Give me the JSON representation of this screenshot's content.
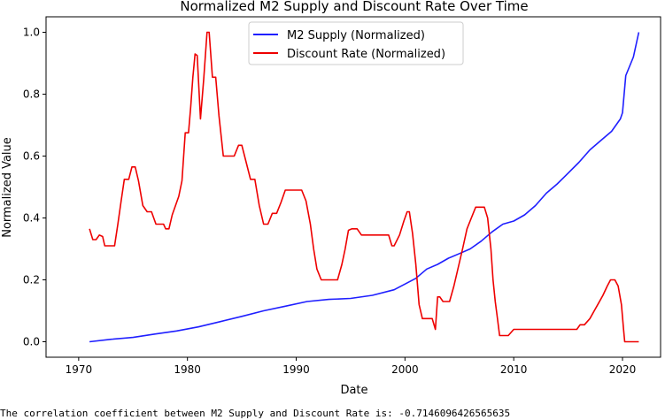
{
  "chart_data": {
    "type": "line",
    "title": "Normalized M2 Supply and Discount Rate Over Time",
    "xlabel": "Date",
    "ylabel": "Normalized Value",
    "xlim": [
      1967,
      2023.5
    ],
    "ylim": [
      -0.05,
      1.05
    ],
    "xticks": [
      1970,
      1980,
      1990,
      2000,
      2010,
      2020
    ],
    "yticks": [
      "0.0",
      "0.2",
      "0.4",
      "0.6",
      "0.8",
      "1.0"
    ],
    "grid": false,
    "legend_position": "top-center",
    "series": [
      {
        "name": "M2 Supply (Normalized)",
        "color": "#1f1fff",
        "x": [
          1971,
          1973,
          1975,
          1977,
          1979,
          1981,
          1983,
          1985,
          1987,
          1989,
          1991,
          1993,
          1995,
          1997,
          1999,
          2001,
          2002,
          2003,
          2004,
          2005,
          2006,
          2007,
          2008,
          2009,
          2010,
          2011,
          2012,
          2013,
          2014,
          2015,
          2016,
          2017,
          2018,
          2019,
          2019.8,
          2020,
          2020.3,
          2021,
          2021.5
        ],
        "y": [
          0.0,
          0.008,
          0.014,
          0.025,
          0.035,
          0.048,
          0.065,
          0.082,
          0.1,
          0.115,
          0.13,
          0.137,
          0.14,
          0.15,
          0.168,
          0.205,
          0.235,
          0.25,
          0.27,
          0.285,
          0.3,
          0.325,
          0.355,
          0.38,
          0.39,
          0.41,
          0.44,
          0.48,
          0.51,
          0.545,
          0.58,
          0.62,
          0.65,
          0.68,
          0.72,
          0.74,
          0.86,
          0.92,
          1.0
        ]
      },
      {
        "name": "Discount Rate (Normalized)",
        "color": "#ee0000",
        "x": [
          1971,
          1971.3,
          1971.6,
          1971.9,
          1972.2,
          1972.4,
          1972.6,
          1973.0,
          1973.3,
          1973.6,
          1973.9,
          1974.2,
          1974.6,
          1974.9,
          1975.2,
          1975.5,
          1975.9,
          1976.3,
          1976.7,
          1977.1,
          1977.5,
          1977.8,
          1978.0,
          1978.3,
          1978.6,
          1978.9,
          1979.2,
          1979.5,
          1979.8,
          1980.1,
          1980.3,
          1980.5,
          1980.7,
          1980.9,
          1981.2,
          1981.5,
          1981.8,
          1982.0,
          1982.3,
          1982.6,
          1982.9,
          1983.3,
          1983.8,
          1984.3,
          1984.7,
          1985.0,
          1985.4,
          1985.8,
          1986.2,
          1986.6,
          1987.0,
          1987.4,
          1987.8,
          1988.2,
          1988.6,
          1989.0,
          1989.5,
          1990.0,
          1990.5,
          1990.9,
          1991.3,
          1991.6,
          1991.9,
          1992.3,
          1992.8,
          1993.3,
          1993.8,
          1994.2,
          1994.5,
          1994.8,
          1995.1,
          1995.6,
          1996.0,
          1996.5,
          1997.0,
          1997.5,
          1998.0,
          1998.5,
          1998.8,
          1999.0,
          1999.5,
          1999.9,
          2000.2,
          2000.4,
          2000.7,
          2001.0,
          2001.3,
          2001.6,
          2001.9,
          2002.2,
          2002.5,
          2002.8,
          2003.0,
          2003.2,
          2003.5,
          2003.8,
          2004.1,
          2004.5,
          2004.9,
          2005.3,
          2005.7,
          2006.1,
          2006.5,
          2006.9,
          2007.3,
          2007.6,
          2007.9,
          2008.1,
          2008.3,
          2008.5,
          2008.7,
          2009.0,
          2009.5,
          2010.0,
          2011.0,
          2012.0,
          2013.0,
          2014.0,
          2015.0,
          2015.8,
          2016.1,
          2016.5,
          2017.0,
          2017.4,
          2017.8,
          2018.2,
          2018.6,
          2018.9,
          2019.3,
          2019.6,
          2019.9,
          2020.1,
          2020.2,
          2020.5,
          2021.0,
          2021.5
        ],
        "y": [
          0.365,
          0.33,
          0.33,
          0.345,
          0.34,
          0.31,
          0.31,
          0.31,
          0.31,
          0.38,
          0.455,
          0.525,
          0.525,
          0.565,
          0.565,
          0.52,
          0.44,
          0.42,
          0.42,
          0.38,
          0.38,
          0.38,
          0.365,
          0.365,
          0.41,
          0.44,
          0.47,
          0.52,
          0.675,
          0.675,
          0.76,
          0.855,
          0.93,
          0.925,
          0.72,
          0.85,
          1.0,
          1.0,
          0.855,
          0.855,
          0.73,
          0.6,
          0.6,
          0.6,
          0.635,
          0.635,
          0.58,
          0.525,
          0.525,
          0.44,
          0.38,
          0.38,
          0.415,
          0.415,
          0.45,
          0.49,
          0.49,
          0.49,
          0.49,
          0.455,
          0.38,
          0.3,
          0.235,
          0.2,
          0.2,
          0.2,
          0.2,
          0.25,
          0.3,
          0.36,
          0.365,
          0.365,
          0.345,
          0.345,
          0.345,
          0.345,
          0.345,
          0.345,
          0.31,
          0.31,
          0.345,
          0.39,
          0.42,
          0.42,
          0.35,
          0.25,
          0.12,
          0.075,
          0.075,
          0.075,
          0.075,
          0.04,
          0.145,
          0.145,
          0.13,
          0.13,
          0.13,
          0.18,
          0.24,
          0.3,
          0.365,
          0.4,
          0.435,
          0.435,
          0.435,
          0.4,
          0.3,
          0.2,
          0.13,
          0.075,
          0.02,
          0.02,
          0.02,
          0.04,
          0.04,
          0.04,
          0.04,
          0.04,
          0.04,
          0.04,
          0.055,
          0.055,
          0.075,
          0.1,
          0.125,
          0.15,
          0.18,
          0.2,
          0.2,
          0.18,
          0.12,
          0.04,
          0.0,
          0.0,
          0.0,
          0.0
        ]
      }
    ]
  },
  "footer": {
    "correlation_text": "The correlation coefficient between M2 Supply and Discount Rate is: -0.7146096426565635"
  }
}
